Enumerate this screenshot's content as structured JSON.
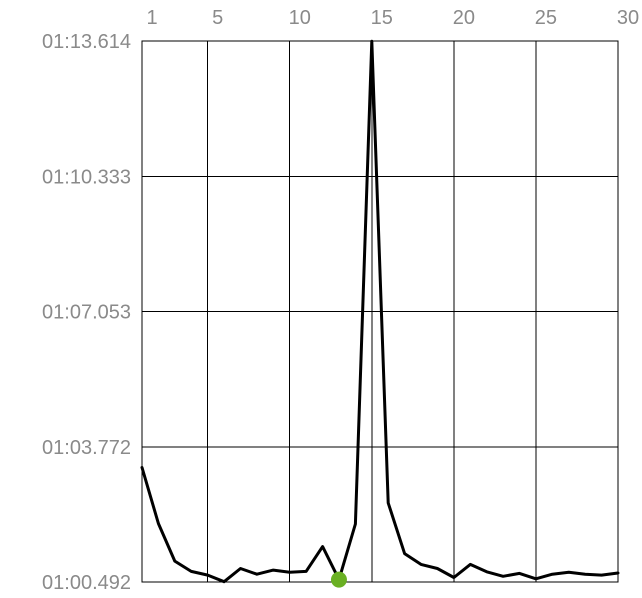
{
  "chart_data": {
    "type": "line",
    "title": "",
    "xlabel": "",
    "ylabel": "",
    "x_ticks": [
      "1",
      "5",
      "10",
      "15",
      "20",
      "25",
      "30"
    ],
    "y_ticks": [
      "01:13.614",
      "01:10.333",
      "01:07.053",
      "01:03.772",
      "01:00.492"
    ],
    "xlim": [
      1,
      30
    ],
    "ylim_seconds": [
      60.492,
      73.614
    ],
    "grid": true,
    "series": [
      {
        "color": "#000000",
        "x": [
          1,
          2,
          3,
          4,
          5,
          6,
          7,
          8,
          9,
          10,
          11,
          12,
          13,
          14,
          15,
          16,
          17,
          18,
          19,
          20,
          21,
          22,
          23,
          24,
          25,
          26,
          27,
          28,
          29,
          30
        ],
        "y": [
          63.27,
          61.91,
          61.0,
          60.75,
          60.66,
          60.5,
          60.82,
          60.68,
          60.78,
          60.73,
          60.75,
          61.35,
          60.55,
          61.9,
          73.61,
          62.41,
          61.18,
          60.92,
          60.82,
          60.6,
          60.92,
          60.74,
          60.63,
          60.7,
          60.57,
          60.68,
          60.73,
          60.68,
          60.66,
          60.71
        ]
      }
    ],
    "highlight_point": {
      "x": 13,
      "y": 60.55,
      "color": "#6ab023"
    }
  }
}
